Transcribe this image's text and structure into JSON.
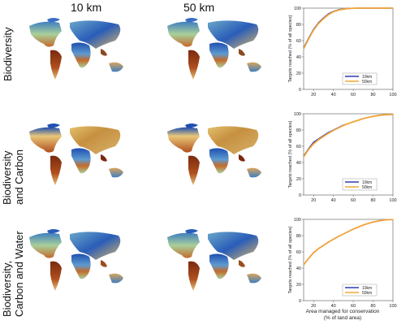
{
  "column_headers": [
    "10 km",
    "50 km"
  ],
  "row_labels": [
    [
      "Biodiversity"
    ],
    [
      "Biodiversity",
      "and Carbon"
    ],
    [
      "Biodiversity,",
      "Carbon and Water"
    ]
  ],
  "colors": {
    "map_low": "#1f4fb0",
    "map_mid": "#f0e6a0",
    "map_high": "#7a2a10",
    "line_10km": "#2a3fb0",
    "line_50km": "#f3a53a"
  },
  "chart_data": [
    {
      "type": "line",
      "x": [
        10,
        15,
        20,
        25,
        30,
        35,
        40,
        45,
        50,
        55,
        60,
        65,
        70,
        75,
        80,
        85,
        90,
        95,
        100
      ],
      "series": [
        {
          "name": "10km",
          "values": [
            51,
            63,
            74,
            82,
            88,
            93,
            96,
            98,
            99,
            99.5,
            99.8,
            100,
            100,
            100,
            100,
            100,
            100,
            100,
            100
          ]
        },
        {
          "name": "50km",
          "values": [
            50,
            62,
            73,
            81,
            87,
            92,
            95.5,
            97.5,
            98.8,
            99.4,
            99.8,
            100,
            100,
            100,
            100,
            100,
            100,
            100,
            100
          ]
        }
      ],
      "xticks": [
        20,
        40,
        60,
        80,
        100
      ],
      "yticks": [
        0,
        20,
        40,
        60,
        80,
        100
      ],
      "xlim": [
        10,
        100
      ],
      "ylim": [
        0,
        100
      ],
      "ylabel": "Targets reached (% of all species)",
      "xlabel": "",
      "legend_position": "bottom-center"
    },
    {
      "type": "line",
      "x": [
        10,
        15,
        20,
        25,
        30,
        35,
        40,
        45,
        50,
        55,
        60,
        65,
        70,
        75,
        80,
        85,
        90,
        95,
        100
      ],
      "series": [
        {
          "name": "10km",
          "values": [
            48,
            57,
            65,
            69,
            73,
            77,
            80,
            83,
            86,
            88,
            90,
            92,
            94,
            95.5,
            96.8,
            97.8,
            98.5,
            99,
            99.2
          ]
        },
        {
          "name": "50km",
          "values": [
            47,
            56,
            63,
            68,
            72,
            76,
            79.5,
            82.5,
            85.5,
            88,
            90,
            92,
            94,
            95.5,
            96.8,
            97.8,
            98.5,
            99,
            99.2
          ]
        }
      ],
      "xticks": [
        20,
        40,
        60,
        80,
        100
      ],
      "yticks": [
        0,
        20,
        40,
        60,
        80,
        100
      ],
      "xlim": [
        10,
        100
      ],
      "ylim": [
        0,
        100
      ],
      "ylabel": "Targets reached (% of all species)",
      "xlabel": "",
      "legend_position": "bottom-center"
    },
    {
      "type": "line",
      "x": [
        10,
        15,
        20,
        25,
        30,
        35,
        40,
        45,
        50,
        55,
        60,
        65,
        70,
        75,
        80,
        85,
        90,
        95,
        100
      ],
      "series": [
        {
          "name": "10km",
          "values": [
            44,
            52,
            59,
            64,
            68,
            72,
            75.5,
            79,
            82,
            85,
            88,
            90.5,
            93,
            95,
            96.8,
            98,
            99,
            99.6,
            99.8
          ]
        },
        {
          "name": "50km",
          "values": [
            44,
            52,
            59,
            64,
            68,
            72,
            75.5,
            79,
            82,
            85,
            88,
            90.5,
            93,
            95,
            96.8,
            98,
            99,
            99.6,
            99.8
          ]
        }
      ],
      "xticks": [
        20,
        40,
        60,
        80,
        100
      ],
      "yticks": [
        0,
        20,
        40,
        60,
        80,
        100
      ],
      "xlim": [
        10,
        100
      ],
      "ylim": [
        0,
        100
      ],
      "ylabel": "Targets reached (% of all species)",
      "xlabel": "Area managed for conservation (% of land area)",
      "legend_position": "bottom-center"
    }
  ],
  "xlabel_lines": [
    "Area managed for conservation",
    "(% of land area)"
  ]
}
